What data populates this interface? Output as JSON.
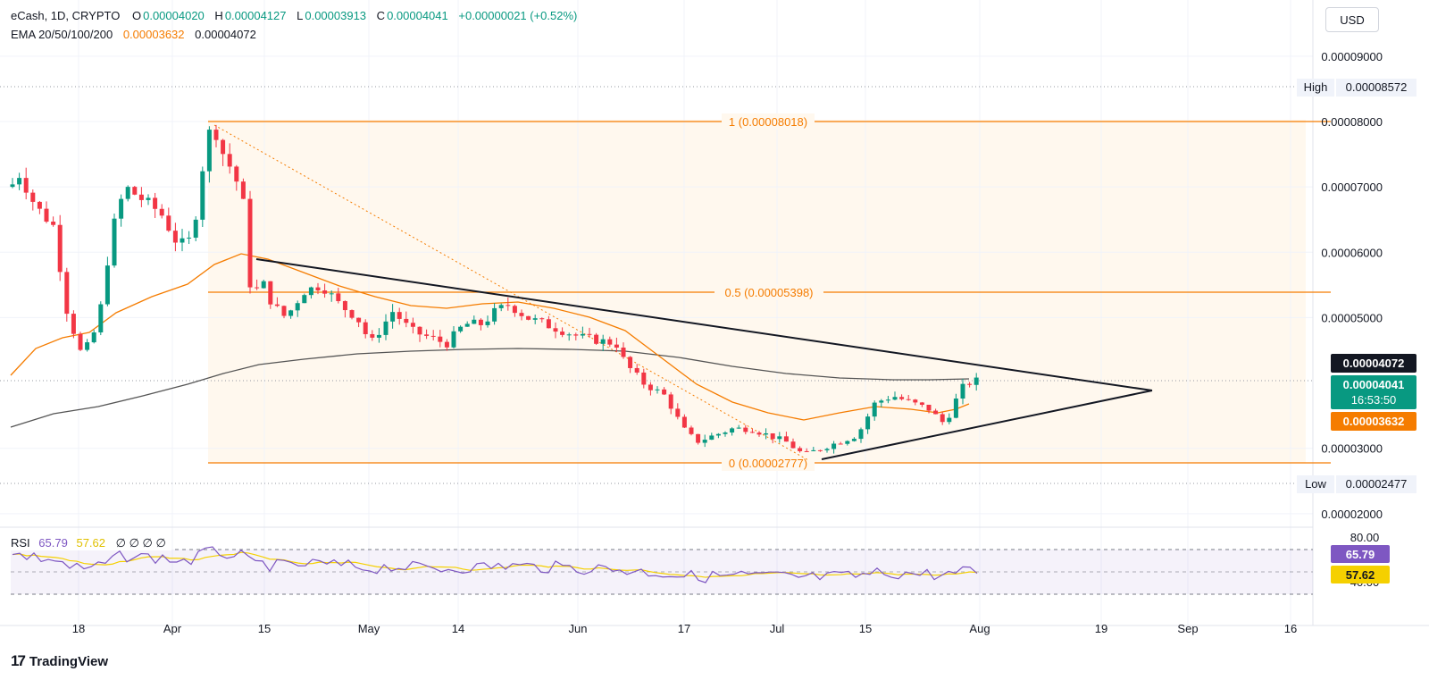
{
  "legend": {
    "symbol": "eCash, 1D, CRYPTO",
    "o_label": "O",
    "o": "0.00004020",
    "h_label": "H",
    "h": "0.00004127",
    "l_label": "L",
    "l": "0.00003913",
    "c_label": "C",
    "c": "0.00004041",
    "change": "+0.00000021 (+0.52%)",
    "ema_label": "EMA 20/50/100/200",
    "ema_a": "0.00003632",
    "ema_b": "0.00004072"
  },
  "rsi_legend": {
    "label": "RSI",
    "v1": "65.79",
    "v2": "57.62",
    "rest": "∅ ∅ ∅ ∅"
  },
  "currency_button": "USD",
  "brand": "TradingView",
  "colors": {
    "up": "#089981",
    "down": "#f23645",
    "ema_fast": "#f57c00",
    "ema_slow": "#555555",
    "fib": "#f57c00",
    "rsi": "#7e57c2",
    "rsi_ma": "#f5d000"
  },
  "chart_data": {
    "type": "candlestick",
    "y_range": [
      1.9e-05,
      9.35e-05
    ],
    "y_ticks": [
      "0.00009000",
      "0.00008000",
      "0.00007000",
      "0.00006000",
      "0.00005000",
      "0.00003000",
      "0.00002000"
    ],
    "x_ticks": [
      "18",
      "Apr",
      "15",
      "May",
      "14",
      "Jun",
      "17",
      "Jul",
      "15",
      "Aug",
      "19",
      "Sep",
      "16"
    ],
    "markers": {
      "high": {
        "label": "High",
        "value": "0.00008572"
      },
      "low": {
        "label": "Low",
        "value": "0.00002477"
      },
      "ema_slow_tag": "0.00004072",
      "price_tag": "0.00004041",
      "countdown": "16:53:50",
      "ema_fast_tag": "0.00003632"
    },
    "fib_levels": [
      {
        "label": "1 (0.00008018)",
        "value": 8.018e-05
      },
      {
        "label": "0.5 (0.00005398)",
        "value": 5.398e-05
      },
      {
        "label": "0 (0.00002777)",
        "value": 2.777e-05
      }
    ],
    "rsi": {
      "ticks": [
        "80.00",
        "40.00"
      ],
      "value_tag": "65.79",
      "ma_tag": "57.62",
      "upper": 70,
      "mid": 50,
      "lower": 30,
      "range": [
        20,
        82
      ]
    }
  }
}
